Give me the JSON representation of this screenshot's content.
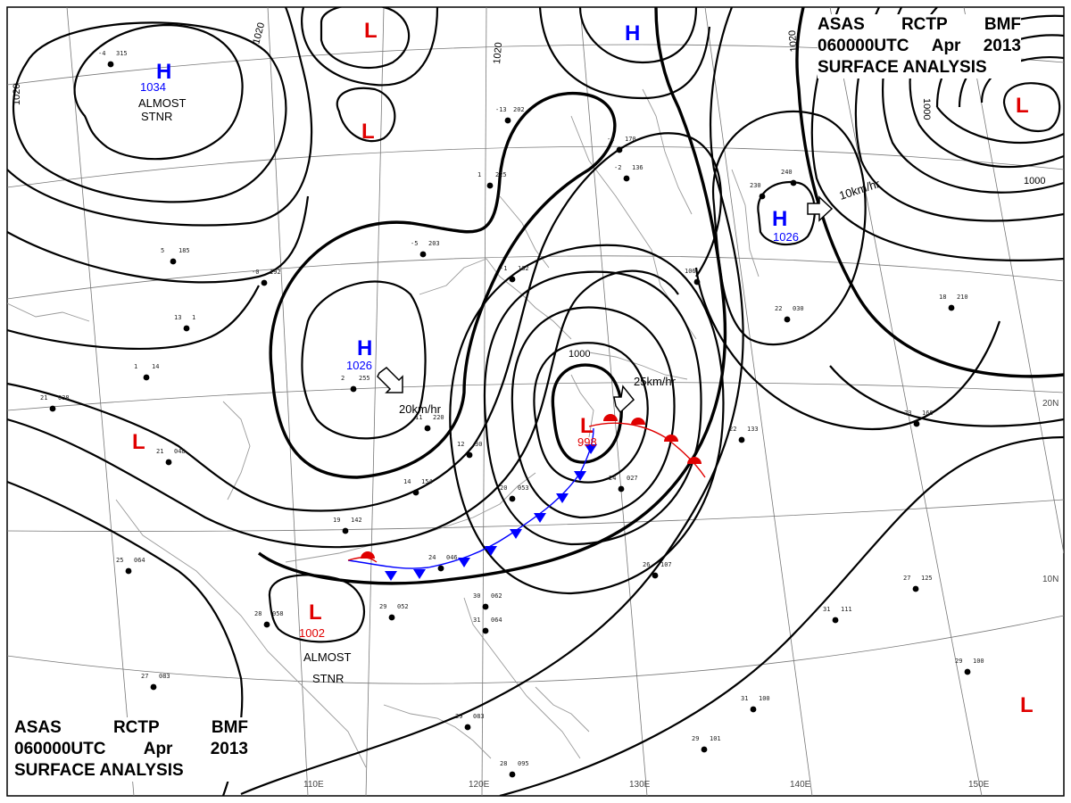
{
  "header": {
    "line1": [
      "ASAS",
      "RCTP",
      "BMF"
    ],
    "line2": [
      "060000UTC",
      "Apr",
      "2013"
    ],
    "line3": "SURFACE ANALYSIS"
  },
  "grid_labels": {
    "longitudes": [
      "110E",
      "120E",
      "130E",
      "140E",
      "150E"
    ],
    "latitudes": [
      "20N",
      "10N"
    ]
  },
  "isobar_labels": [
    "1020",
    "1020",
    "1020",
    "1020",
    "1000",
    "1000",
    "1000"
  ],
  "pressure_systems": [
    {
      "type": "H",
      "value": "1034",
      "note": [
        "ALMOST",
        "STNR"
      ]
    },
    {
      "type": "H",
      "value": "1026",
      "motion": "20km/hr"
    },
    {
      "type": "H",
      "value": "1026",
      "motion": "10km/hr"
    },
    {
      "type": "H",
      "value": ""
    },
    {
      "type": "L",
      "value": "998",
      "motion": "25km/hr"
    },
    {
      "type": "L",
      "value": "1002",
      "note": [
        "ALMOST",
        "STNR"
      ]
    },
    {
      "type": "L",
      "value": ""
    },
    {
      "type": "L",
      "value": ""
    },
    {
      "type": "L",
      "value": ""
    },
    {
      "type": "L",
      "value": ""
    },
    {
      "type": "L",
      "value": ""
    }
  ],
  "station_plots": [
    [
      "-4",
      "315"
    ],
    [
      "-13",
      "202"
    ],
    [
      "-1",
      "170"
    ],
    [
      "-2",
      "136"
    ],
    [
      "1",
      "225"
    ],
    [
      "-5",
      "203"
    ],
    [
      "-1",
      "162"
    ],
    [
      "-0",
      "192"
    ],
    [
      "5",
      "185"
    ],
    [
      "13",
      "1"
    ],
    [
      "1",
      "14"
    ],
    [
      "21",
      "038"
    ],
    [
      "21",
      "048"
    ],
    [
      "2",
      "255"
    ],
    [
      "11",
      "220"
    ],
    [
      "12",
      "30"
    ],
    [
      "14",
      "154"
    ],
    [
      "20",
      "053"
    ],
    [
      "25",
      "064"
    ],
    [
      "19",
      "142"
    ],
    [
      "24",
      "046"
    ],
    [
      "28",
      "058"
    ],
    [
      "29",
      "052"
    ],
    [
      "27",
      "083"
    ],
    [
      "30",
      "062"
    ],
    [
      "31",
      "064"
    ],
    [
      "29",
      "083"
    ],
    [
      "28",
      "095"
    ],
    [
      "26",
      "107"
    ],
    [
      "27",
      "125"
    ],
    [
      "31",
      "111"
    ],
    [
      "31",
      "100"
    ],
    [
      "29",
      "101"
    ],
    [
      "29",
      "100"
    ],
    [
      "23",
      "166"
    ],
    [
      "22",
      "133"
    ],
    [
      "18",
      "210"
    ],
    [
      "22",
      "030"
    ],
    [
      "24",
      "027"
    ],
    [
      "240",
      ""
    ],
    [
      "230",
      ""
    ],
    [
      "106",
      ""
    ]
  ],
  "colors": {
    "high": "#0000ff",
    "low": "#e00000",
    "isobar": "#000000",
    "warm_front": "#e00000",
    "cold_front": "#0000ff",
    "grid": "#777777"
  }
}
